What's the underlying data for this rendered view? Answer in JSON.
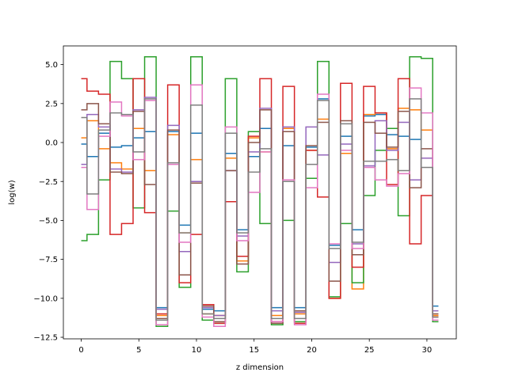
{
  "chart_data": {
    "type": "line",
    "drawstyle": "steps-mid",
    "title": "",
    "xlabel": "z dimension",
    "ylabel": "log(w)",
    "xlim": [
      -1.55,
      32.55
    ],
    "ylim": [
      -12.6,
      6.2
    ],
    "xticks": [
      0,
      5,
      10,
      15,
      20,
      25,
      30
    ],
    "yticks": [
      -12.5,
      -10.0,
      -7.5,
      -5.0,
      -2.5,
      0.0,
      2.5,
      5.0
    ],
    "grid": false,
    "legend": "none",
    "x": [
      0,
      1,
      2,
      3,
      4,
      5,
      6,
      7,
      8,
      9,
      10,
      11,
      12,
      13,
      14,
      15,
      16,
      17,
      18,
      19,
      20,
      21,
      22,
      23,
      24,
      25,
      26,
      27,
      28,
      29,
      30,
      31
    ],
    "series": [
      {
        "color": "#1f77b4",
        "values": [
          -0.1,
          -0.9,
          0.6,
          -0.3,
          -0.2,
          0.3,
          0.7,
          -10.6,
          0.7,
          -5.3,
          0.6,
          -10.7,
          -10.8,
          -0.7,
          -5.6,
          -0.9,
          0.9,
          -10.6,
          -0.2,
          -10.6,
          -0.3,
          2.8,
          -6.6,
          0.4,
          -5.6,
          1.7,
          1.8,
          0.5,
          0.4,
          0.2,
          0.8,
          -10.5
        ]
      },
      {
        "color": "#ff7f0e",
        "values": [
          0.3,
          1.4,
          -0.4,
          -1.3,
          -1.7,
          0.9,
          -1.8,
          -11.1,
          0.5,
          -5.8,
          -1.1,
          -11.0,
          -11.1,
          -1.0,
          -7.6,
          0.3,
          -0.6,
          -11.1,
          0.9,
          -11.0,
          -0.5,
          1.5,
          -10.0,
          -0.7,
          -9.4,
          1.8,
          1.9,
          -0.4,
          2.2,
          2.1,
          0.8,
          -11.1
        ]
      },
      {
        "color": "#2ca02c",
        "values": [
          -6.3,
          -5.9,
          -2.4,
          5.2,
          4.1,
          -4.2,
          5.5,
          -11.8,
          -4.4,
          -9.3,
          5.5,
          -11.4,
          -11.6,
          4.1,
          -8.3,
          0.7,
          -5.2,
          -11.7,
          -5.0,
          -11.5,
          -2.3,
          5.2,
          -9.9,
          -5.2,
          -9.0,
          -3.4,
          -0.5,
          0.9,
          -4.7,
          5.5,
          5.4,
          -11.5
        ]
      },
      {
        "color": "#d62728",
        "values": [
          4.1,
          3.3,
          3.1,
          -5.9,
          -5.2,
          4.1,
          -4.5,
          -11.0,
          3.7,
          -9.0,
          -5.9,
          -10.4,
          -11.6,
          -3.8,
          -7.3,
          0.4,
          4.1,
          -11.5,
          3.6,
          -11.6,
          -0.5,
          -3.5,
          -10.0,
          3.8,
          -8.0,
          3.6,
          1.9,
          -2.7,
          4.1,
          -6.5,
          -3.4,
          -11.2
        ]
      },
      {
        "color": "#9467bd",
        "values": [
          -1.4,
          1.8,
          1.0,
          -1.7,
          -1.9,
          2.1,
          2.9,
          -10.7,
          1.1,
          -7.0,
          -2.5,
          -10.6,
          -11.1,
          -1.8,
          -6.0,
          -0.6,
          2.2,
          -10.8,
          1.0,
          -10.9,
          1.0,
          -0.8,
          -7.7,
          -0.1,
          -6.5,
          -1.5,
          1.4,
          -0.5,
          1.3,
          -2.4,
          -1.0,
          -10.8
        ]
      },
      {
        "color": "#8c564b",
        "values": [
          2.1,
          2.5,
          1.2,
          -1.9,
          -2.0,
          2.0,
          -2.7,
          -11.3,
          0.8,
          -8.5,
          -2.6,
          -10.5,
          -11.5,
          -1.8,
          -7.8,
          0.0,
          2.1,
          -11.6,
          0.7,
          -10.8,
          -0.2,
          1.3,
          -8.9,
          1.4,
          -7.2,
          1.3,
          0.6,
          -0.3,
          2.0,
          -2.9,
          -0.4,
          -11.0
        ]
      },
      {
        "color": "#e377c2",
        "values": [
          -1.6,
          -4.3,
          0.4,
          2.6,
          1.7,
          -1.1,
          2.7,
          -11.7,
          -1.4,
          -6.4,
          3.7,
          -11.2,
          -11.8,
          1.0,
          -6.3,
          -3.2,
          -0.6,
          -11.5,
          -2.4,
          -11.7,
          -2.9,
          3.1,
          -6.5,
          -0.5,
          -6.8,
          -1.6,
          -2.4,
          -2.8,
          -2.0,
          3.5,
          1.9,
          -11.4
        ]
      },
      {
        "color": "#7f7f7f",
        "values": [
          1.6,
          -3.3,
          0.8,
          1.9,
          1.8,
          -0.6,
          2.8,
          -11.4,
          -1.3,
          -5.8,
          2.4,
          -11.0,
          -11.3,
          0.6,
          -5.8,
          -1.9,
          -0.4,
          -11.3,
          -2.5,
          -11.3,
          -1.4,
          2.7,
          -6.8,
          1.2,
          -6.4,
          -1.2,
          -1.2,
          -1.1,
          -1.8,
          2.8,
          -1.6,
          -11.2
        ]
      }
    ]
  }
}
